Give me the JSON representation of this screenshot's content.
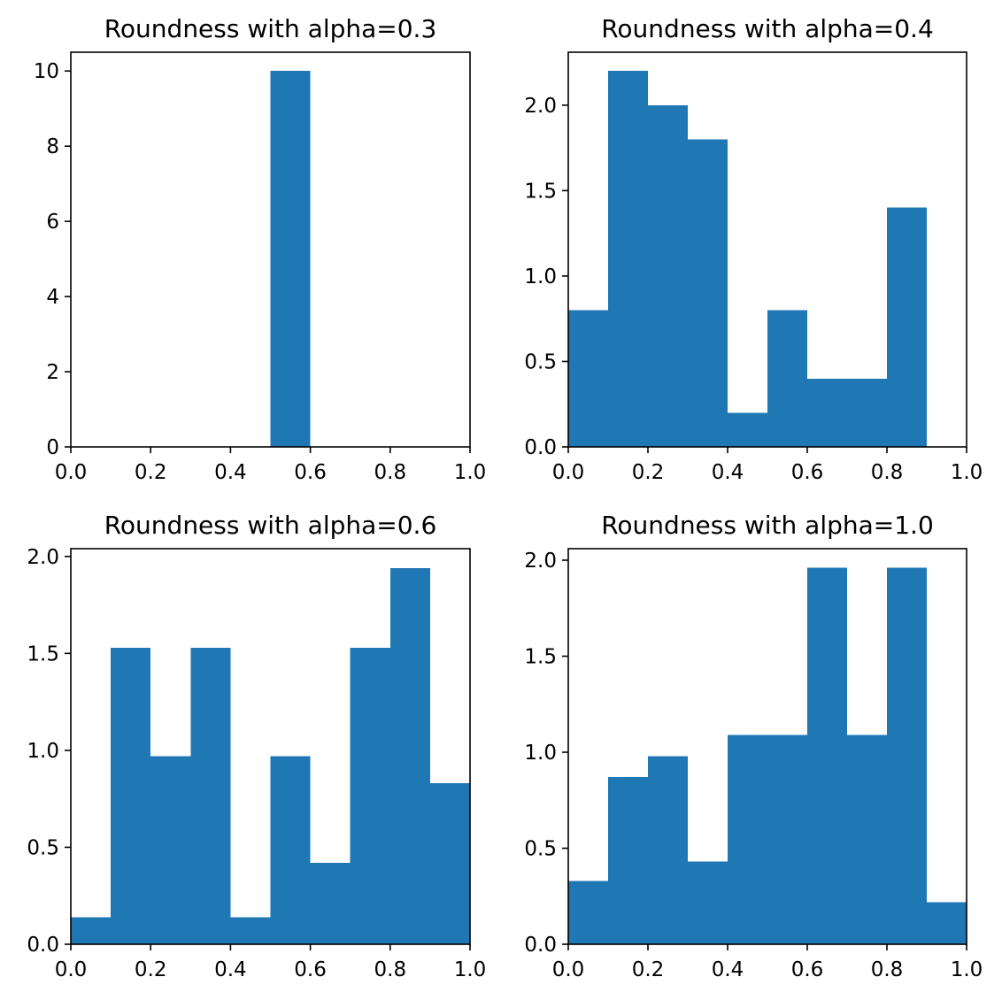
{
  "chart_data": [
    {
      "type": "bar",
      "title": "Roundness with alpha=0.3",
      "xlabel": "",
      "ylabel": "",
      "bin_edges": [
        0.0,
        0.1,
        0.2,
        0.3,
        0.4,
        0.5,
        0.6,
        0.7,
        0.8,
        0.9,
        1.0
      ],
      "values": [
        0,
        0,
        0,
        0,
        0,
        10,
        0,
        0,
        0,
        0
      ],
      "xlim": [
        0.0,
        1.0
      ],
      "ylim": [
        0,
        10.5
      ],
      "xticks": [
        0.0,
        0.2,
        0.4,
        0.6,
        0.8,
        1.0
      ],
      "xtick_labels": [
        "0.0",
        "0.2",
        "0.4",
        "0.6",
        "0.8",
        "1.0"
      ],
      "yticks": [
        0,
        2,
        4,
        6,
        8,
        10
      ],
      "ytick_labels": [
        "0",
        "2",
        "4",
        "6",
        "8",
        "10"
      ],
      "color": "#1f77b4",
      "grid": false
    },
    {
      "type": "bar",
      "title": "Roundness with alpha=0.4",
      "xlabel": "",
      "ylabel": "",
      "bin_edges": [
        0.0,
        0.1,
        0.2,
        0.3,
        0.4,
        0.5,
        0.6,
        0.7,
        0.8,
        0.9,
        1.0
      ],
      "values": [
        0.8,
        2.2,
        2.0,
        1.8,
        0.2,
        0.8,
        0.4,
        0.4,
        1.4,
        0
      ],
      "xlim": [
        0.0,
        1.0
      ],
      "ylim": [
        0,
        2.31
      ],
      "xticks": [
        0.0,
        0.2,
        0.4,
        0.6,
        0.8,
        1.0
      ],
      "xtick_labels": [
        "0.0",
        "0.2",
        "0.4",
        "0.6",
        "0.8",
        "1.0"
      ],
      "yticks": [
        0.0,
        0.5,
        1.0,
        1.5,
        2.0
      ],
      "ytick_labels": [
        "0.0",
        "0.5",
        "1.0",
        "1.5",
        "2.0"
      ],
      "color": "#1f77b4",
      "grid": false
    },
    {
      "type": "bar",
      "title": "Roundness with alpha=0.6",
      "xlabel": "",
      "ylabel": "",
      "bin_edges": [
        0.0,
        0.1,
        0.2,
        0.3,
        0.4,
        0.5,
        0.6,
        0.7,
        0.8,
        0.9,
        1.0
      ],
      "values": [
        0.14,
        1.53,
        0.97,
        1.53,
        0.14,
        0.97,
        0.42,
        1.53,
        1.94,
        0.83
      ],
      "xlim": [
        0.0,
        1.0
      ],
      "ylim": [
        0,
        2.04
      ],
      "xticks": [
        0.0,
        0.2,
        0.4,
        0.6,
        0.8,
        1.0
      ],
      "xtick_labels": [
        "0.0",
        "0.2",
        "0.4",
        "0.6",
        "0.8",
        "1.0"
      ],
      "yticks": [
        0.0,
        0.5,
        1.0,
        1.5,
        2.0
      ],
      "ytick_labels": [
        "0.0",
        "0.5",
        "1.0",
        "1.5",
        "2.0"
      ],
      "color": "#1f77b4",
      "grid": false
    },
    {
      "type": "bar",
      "title": "Roundness with alpha=1.0",
      "xlabel": "",
      "ylabel": "",
      "bin_edges": [
        0.0,
        0.1,
        0.2,
        0.3,
        0.4,
        0.5,
        0.6,
        0.7,
        0.8,
        0.9,
        1.0
      ],
      "values": [
        0.33,
        0.87,
        0.98,
        0.43,
        1.09,
        1.09,
        1.96,
        1.09,
        1.96,
        0.22
      ],
      "xlim": [
        0.0,
        1.0
      ],
      "ylim": [
        0,
        2.06
      ],
      "xticks": [
        0.0,
        0.2,
        0.4,
        0.6,
        0.8,
        1.0
      ],
      "xtick_labels": [
        "0.0",
        "0.2",
        "0.4",
        "0.6",
        "0.8",
        "1.0"
      ],
      "yticks": [
        0.0,
        0.5,
        1.0,
        1.5,
        2.0
      ],
      "ytick_labels": [
        "0.0",
        "0.5",
        "1.0",
        "1.5",
        "2.0"
      ],
      "color": "#1f77b4",
      "grid": false
    }
  ]
}
